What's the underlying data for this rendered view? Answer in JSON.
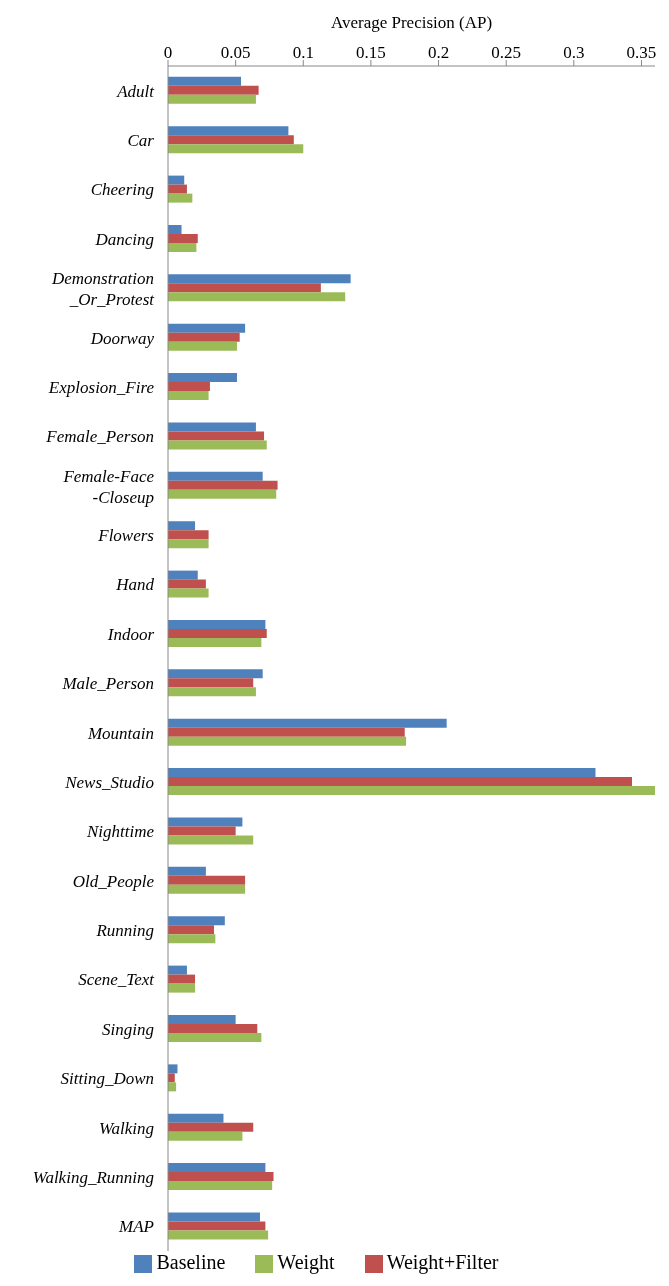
{
  "chart_data": {
    "type": "bar",
    "orientation": "horizontal",
    "xlabel": "Average Precision (AP)",
    "categories": [
      "Adult",
      "Car",
      "Cheering",
      "Dancing",
      "Demonstration_Or_Protest",
      "Doorway",
      "Explosion_Fire",
      "Female_Person",
      "Female-Face-Closeup",
      "Flowers",
      "Hand",
      "Indoor",
      "Male_Person",
      "Mountain",
      "News_Studio",
      "Nighttime",
      "Old_People",
      "Running",
      "Scene_Text",
      "Singing",
      "Sitting_Down",
      "Walking",
      "Walking_Running",
      "MAP"
    ],
    "series": [
      {
        "name": "Baseline",
        "color": "#4f81bd",
        "values": [
          0.054,
          0.089,
          0.012,
          0.01,
          0.135,
          0.057,
          0.051,
          0.065,
          0.07,
          0.02,
          0.022,
          0.072,
          0.07,
          0.206,
          0.316,
          0.055,
          0.028,
          0.042,
          0.014,
          0.05,
          0.007,
          0.041,
          0.072,
          0.068
        ]
      },
      {
        "name": "Weight+Filter",
        "color": "#c0504d",
        "values": [
          0.067,
          0.093,
          0.014,
          0.022,
          0.113,
          0.053,
          0.031,
          0.071,
          0.081,
          0.03,
          0.028,
          0.073,
          0.063,
          0.175,
          0.343,
          0.05,
          0.057,
          0.034,
          0.02,
          0.066,
          0.005,
          0.063,
          0.078,
          0.072
        ]
      },
      {
        "name": "Weight",
        "color": "#9bbb59",
        "values": [
          0.065,
          0.1,
          0.018,
          0.021,
          0.131,
          0.051,
          0.03,
          0.073,
          0.08,
          0.03,
          0.03,
          0.069,
          0.065,
          0.176,
          0.36,
          0.063,
          0.057,
          0.035,
          0.02,
          0.069,
          0.006,
          0.055,
          0.077,
          0.074
        ]
      }
    ],
    "xlim": [
      0,
      0.36
    ],
    "xticks": [
      0,
      0.05,
      0.1,
      0.15,
      0.2,
      0.25,
      0.3,
      0.35
    ],
    "legend": "bottom"
  }
}
